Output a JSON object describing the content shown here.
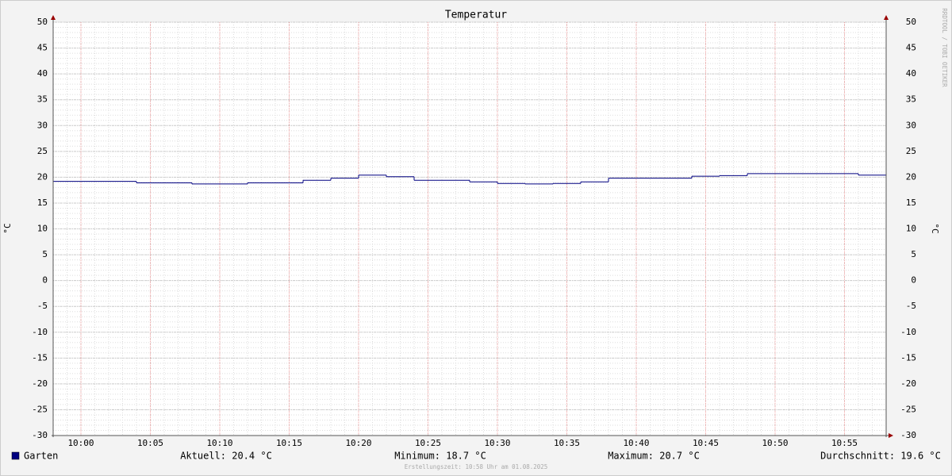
{
  "chart_data": {
    "type": "line",
    "title": "Temperatur",
    "y_label": "°C",
    "y2_label": "°C",
    "watermark": "RRDTOOL / TOBI OETIKER",
    "footer": "Erstellungszeit: 10:58 Uhr am 01.08.2025",
    "step": true,
    "x": [
      "09:58",
      "10:04",
      "10:08",
      "10:12",
      "10:16",
      "10:18",
      "10:20",
      "10:22",
      "10:24",
      "10:28",
      "10:30",
      "10:32",
      "10:34",
      "10:36",
      "10:38",
      "10:44",
      "10:46",
      "10:48",
      "10:56"
    ],
    "xlim": [
      "09:58",
      "10:58"
    ],
    "xticks": [
      "10:00",
      "10:05",
      "10:10",
      "10:15",
      "10:20",
      "10:25",
      "10:30",
      "10:35",
      "10:40",
      "10:45",
      "10:50",
      "10:55"
    ],
    "series": [
      {
        "name": "Garten",
        "color": "#000080",
        "values": [
          19.2,
          18.9,
          18.7,
          18.9,
          19.4,
          19.8,
          20.4,
          20.1,
          19.4,
          19.1,
          18.8,
          18.7,
          18.8,
          19.1,
          19.8,
          20.2,
          20.3,
          20.7,
          20.4
        ]
      }
    ],
    "stats": [
      "Aktuell: 20.4 °C",
      "Minimum: 18.7 °C",
      "Maximum: 20.7 °C",
      "Durchschnitt: 19.6 °C"
    ],
    "ylim": [
      -30,
      50
    ],
    "yticks": [
      -30,
      -25,
      -20,
      -15,
      -10,
      -5,
      0,
      5,
      10,
      15,
      20,
      25,
      30,
      35,
      40,
      45,
      50
    ],
    "grid": true
  }
}
